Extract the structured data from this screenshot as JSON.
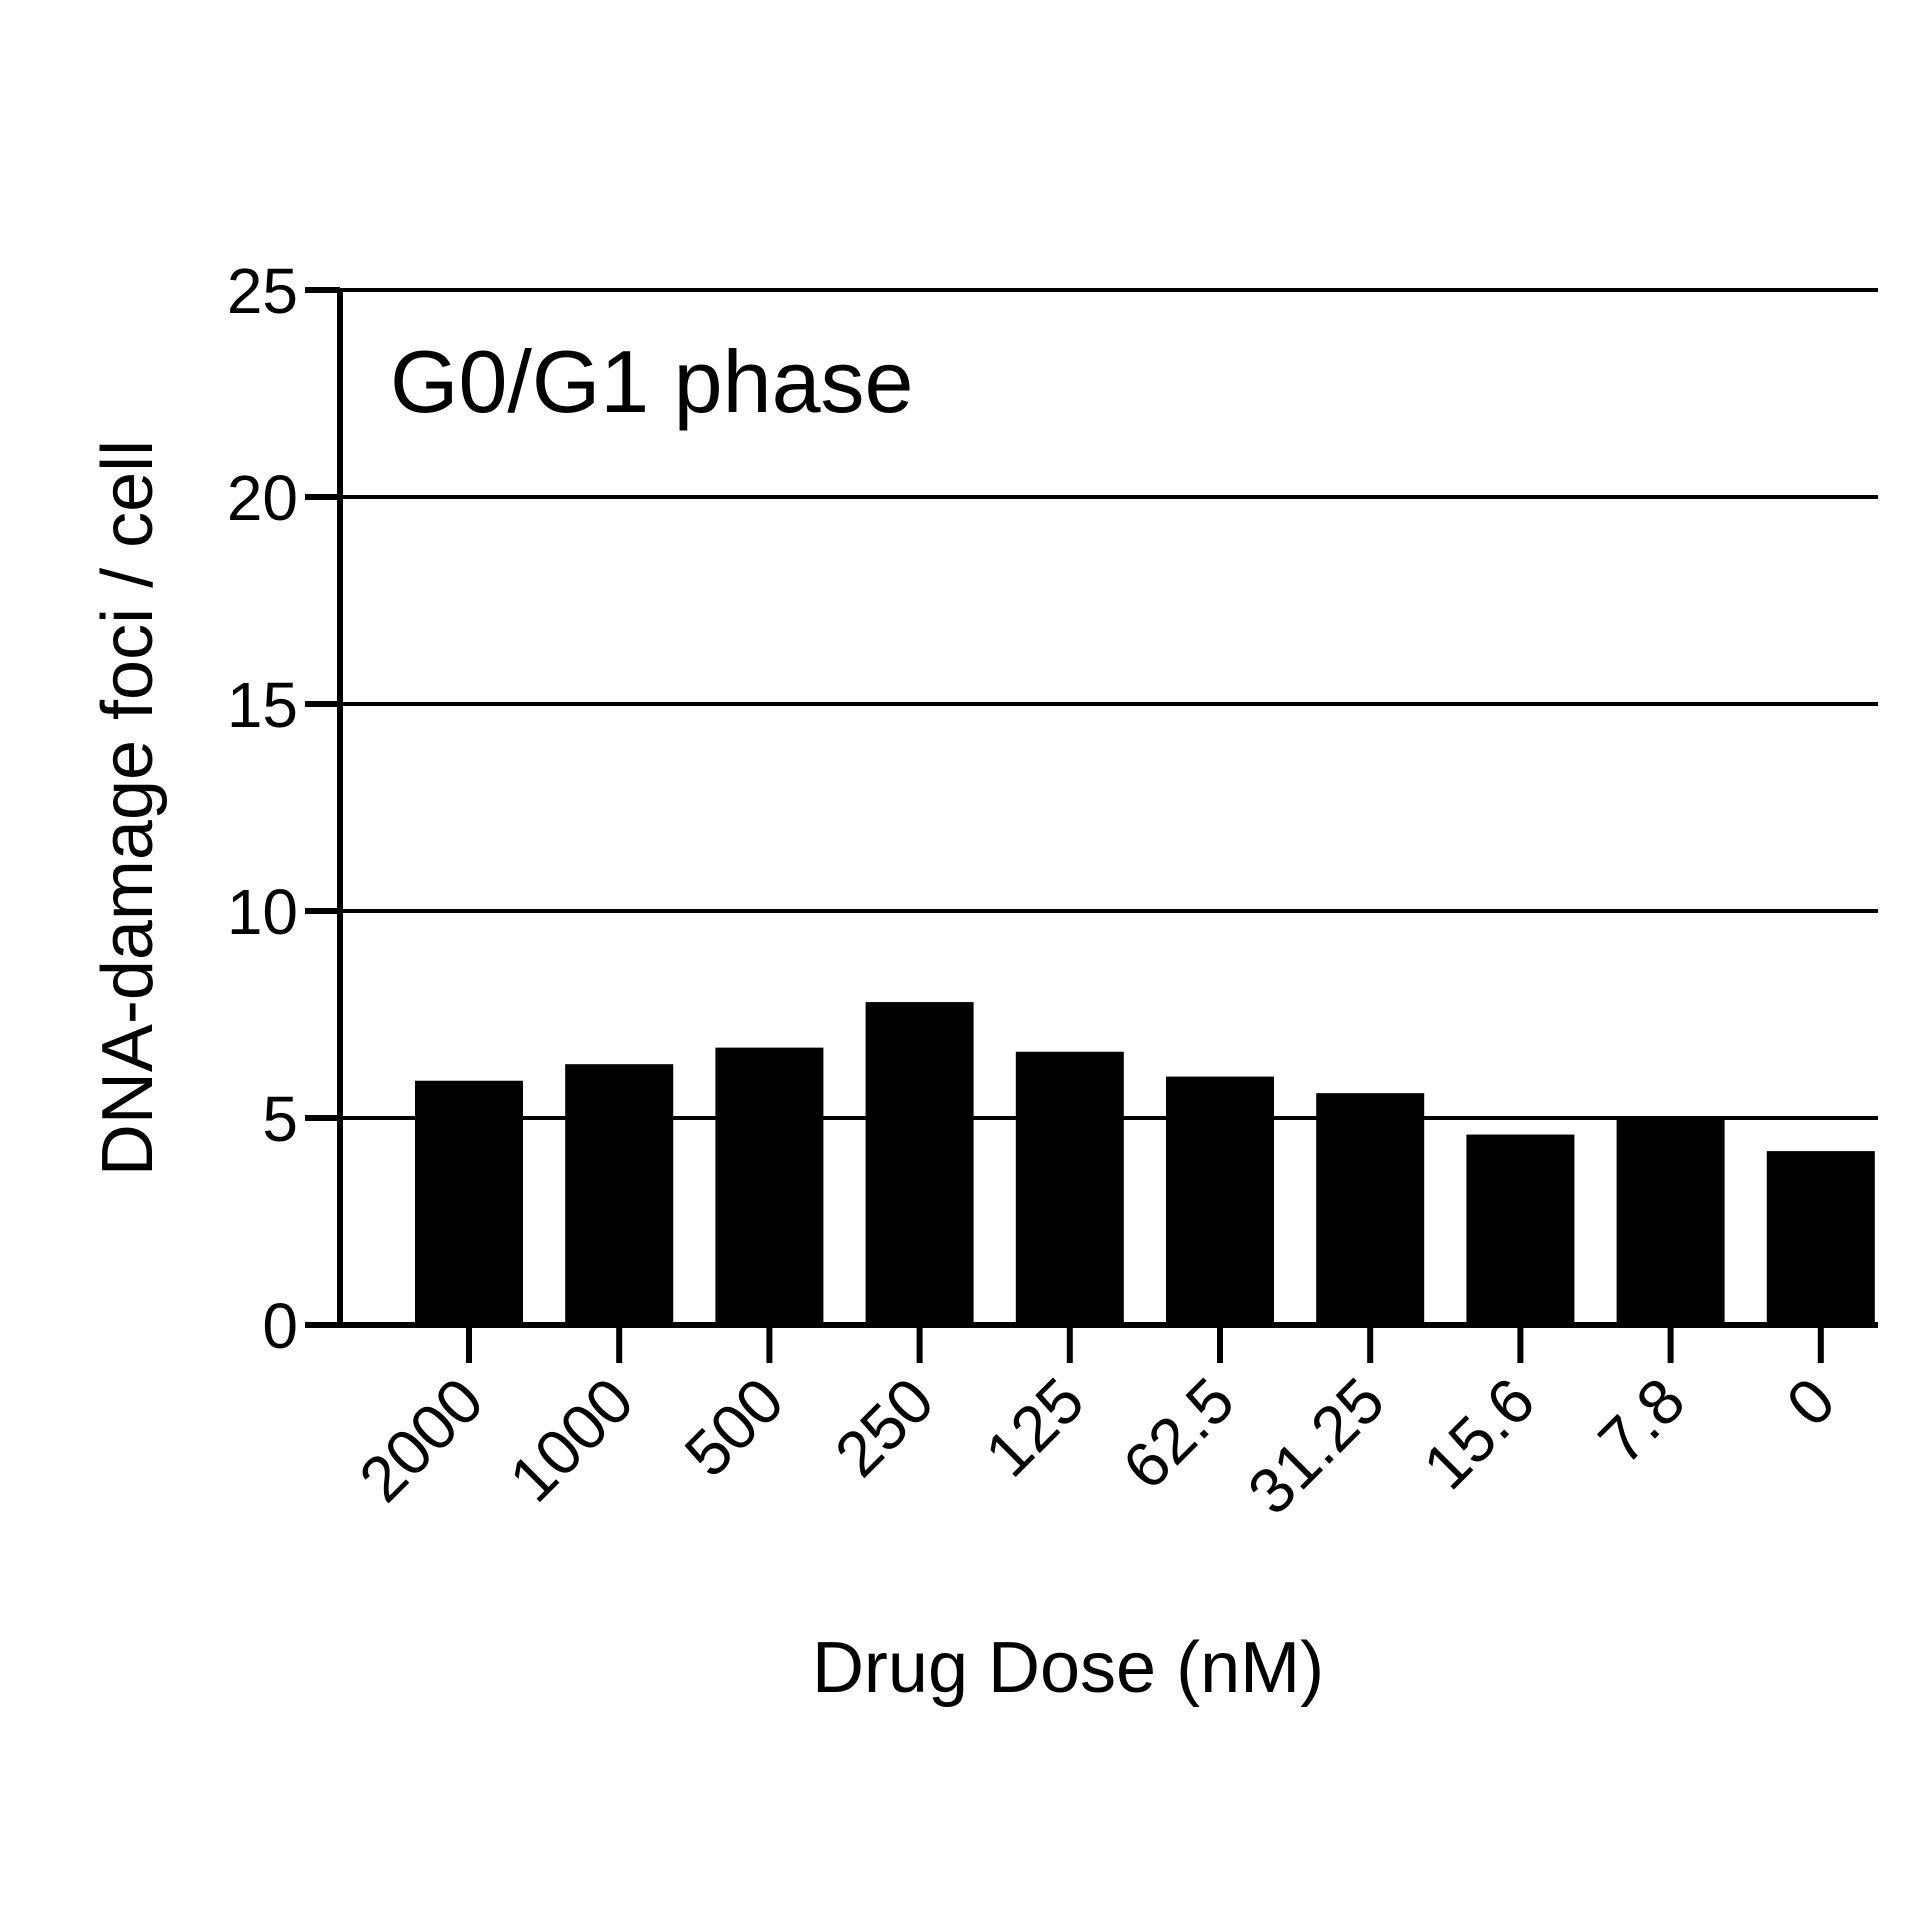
{
  "chart_data": {
    "type": "bar",
    "annotation": "G0/G1 phase",
    "xlabel": "Drug Dose (nM)",
    "ylabel": "DNA-damage foci / cell",
    "categories": [
      "2000",
      "1000",
      "500",
      "250",
      "125",
      "62.5",
      "31.25",
      "15.6",
      "7.8",
      "0"
    ],
    "values": [
      5.9,
      6.3,
      6.7,
      7.8,
      6.6,
      6.0,
      5.6,
      4.6,
      5.0,
      4.2
    ],
    "ylim": [
      0,
      25
    ],
    "yticks": [
      "0",
      "5",
      "10",
      "15",
      "20",
      "25"
    ],
    "grid": "horizontal",
    "bar_color": "#000000"
  }
}
